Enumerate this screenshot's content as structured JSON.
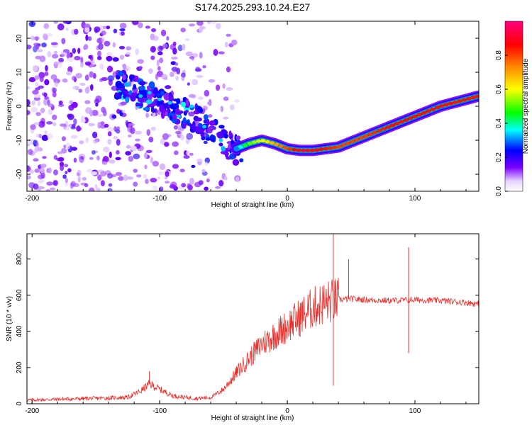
{
  "title": "S174.2025.293.10.24.E27",
  "chart_data": [
    {
      "type": "heatmap",
      "panel": "spectrogram",
      "xlabel": "Height of straight line (km)",
      "ylabel": "Frequency (Hz)",
      "xlim": [
        -204,
        150
      ],
      "ylim": [
        -25,
        25
      ],
      "xticks": [
        -200,
        -100,
        0,
        100
      ],
      "xtick_labels": [
        "-200",
        "-100",
        "0",
        "100"
      ],
      "yticks": [
        -20,
        -10,
        0,
        10,
        20
      ],
      "ytick_labels": [
        "-20",
        "-10",
        "0",
        "10",
        "20"
      ],
      "colorbar": {
        "label": "Normalized spectral amplitude",
        "range": [
          0,
          1
        ],
        "ticks": [
          0.0,
          0.2,
          0.4,
          0.6,
          0.8
        ],
        "tick_labels": [
          "0.0",
          "0.2",
          "0.4",
          "0.6",
          "0.8"
        ]
      },
      "ridge": {
        "x": [
          -40,
          -30,
          -20,
          -10,
          0,
          10,
          20,
          30,
          40,
          60,
          80,
          100,
          120,
          140,
          150
        ],
        "freq": [
          -12.5,
          -11,
          -10,
          -11,
          -12.5,
          -13,
          -13,
          -12.5,
          -12,
          -9,
          -6,
          -3,
          0,
          2,
          3
        ],
        "amplitude": [
          0.3,
          0.5,
          0.6,
          0.7,
          0.8,
          0.9,
          0.9,
          0.85,
          0.8,
          0.8,
          0.85,
          0.85,
          0.85,
          0.85,
          0.85
        ]
      }
    },
    {
      "type": "line",
      "panel": "snr",
      "xlabel": "Height of straight line (km)",
      "ylabel": "SNR (10 * v/v)",
      "xlim": [
        -204,
        150
      ],
      "ylim": [
        0,
        940
      ],
      "xticks": [
        -200,
        -100,
        0,
        100
      ],
      "xtick_labels": [
        "-200",
        "-100",
        "0",
        "100"
      ],
      "yticks": [
        0,
        200,
        400,
        600,
        800
      ],
      "ytick_labels": [
        "0",
        "200",
        "400",
        "600",
        "800"
      ],
      "color": "#e8302c",
      "series": [
        {
          "name": "SNR",
          "x": [
            -204,
            -180,
            -150,
            -125,
            -115,
            -108,
            -100,
            -90,
            -80,
            -70,
            -60,
            -50,
            -40,
            -30,
            -20,
            -10,
            0,
            10,
            20,
            30,
            40,
            50,
            60,
            80,
            100,
            120,
            140,
            150
          ],
          "y": [
            20,
            25,
            30,
            35,
            70,
            110,
            80,
            45,
            35,
            30,
            35,
            80,
            170,
            250,
            330,
            380,
            430,
            480,
            530,
            560,
            575,
            580,
            575,
            570,
            575,
            570,
            560,
            550
          ]
        }
      ],
      "spikes": [
        {
          "x": -108,
          "y": 180
        },
        {
          "x": 10,
          "y": 370
        },
        {
          "x": 36,
          "y": 940
        },
        {
          "x": 36,
          "y": 100
        },
        {
          "x": 48,
          "y": 800
        },
        {
          "x": 95,
          "y": 865
        },
        {
          "x": 95,
          "y": 280
        }
      ]
    }
  ]
}
